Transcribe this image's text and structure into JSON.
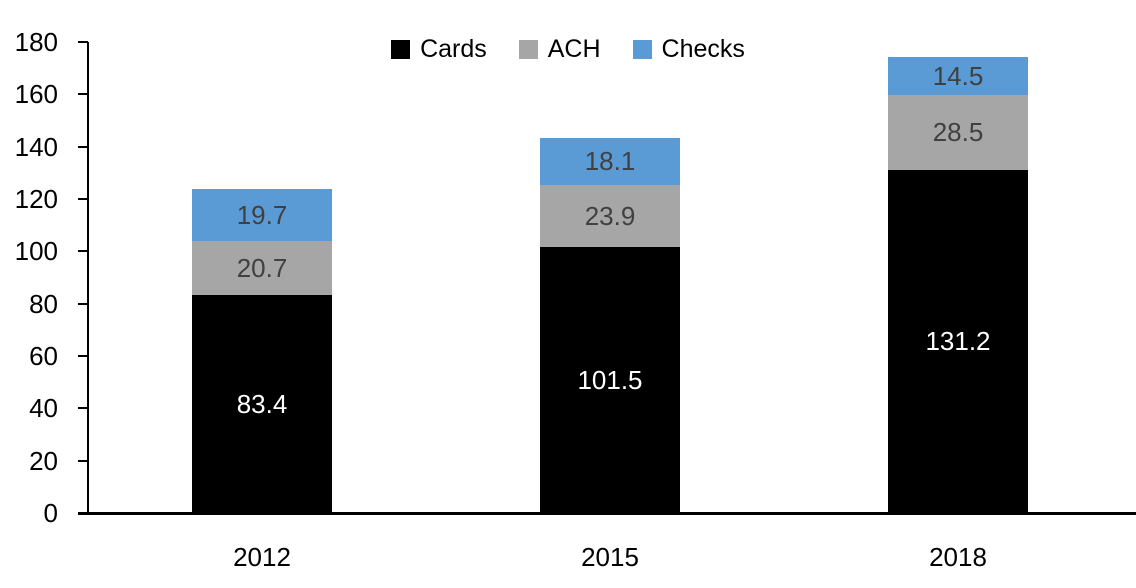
{
  "chart_data": {
    "type": "bar",
    "stacked": true,
    "title": "",
    "categories": [
      "2012",
      "2015",
      "2018"
    ],
    "series": [
      {
        "name": "Cards",
        "color": "#000000",
        "label_color": "#FFFFFF",
        "values": [
          83.4,
          101.5,
          131.2
        ]
      },
      {
        "name": "ACH",
        "color": "#A6A6A6",
        "label_color": "#404040",
        "values": [
          20.7,
          23.9,
          28.5
        ]
      },
      {
        "name": "Checks",
        "color": "#5B9BD5",
        "label_color": "#404040",
        "values": [
          19.7,
          18.1,
          14.5
        ]
      }
    ],
    "ylim": [
      0,
      180
    ],
    "yticks": [
      0,
      20,
      40,
      60,
      80,
      100,
      120,
      140,
      160,
      180
    ],
    "value_label_decimals": 1,
    "legend_position": "top",
    "grid": false,
    "axis_color": "#000000",
    "background": "#FFFFFF"
  }
}
